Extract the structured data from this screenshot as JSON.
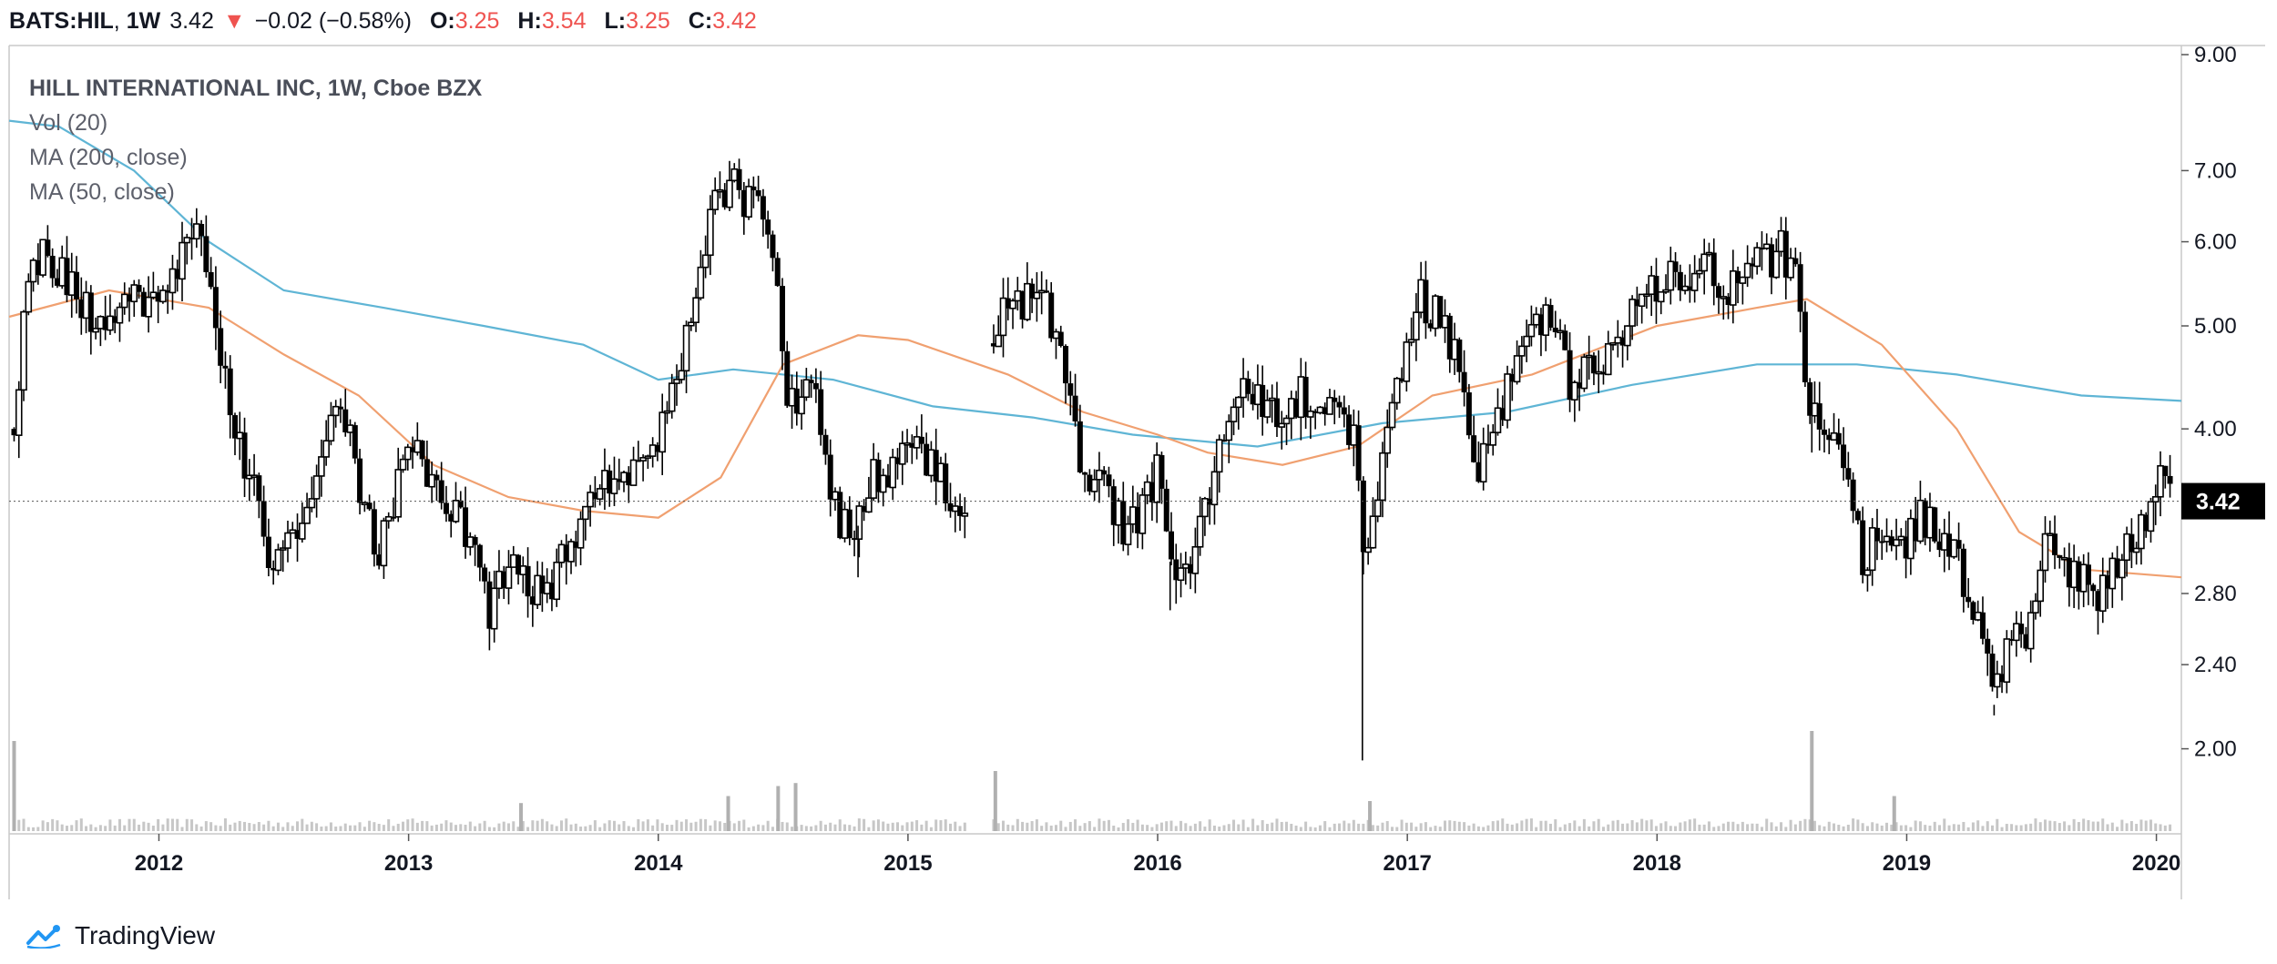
{
  "header": {
    "symbol": "BATS:HIL",
    "interval": "1W",
    "last": "3.42",
    "change": "−0.02 (−0.58%)",
    "o_label": "O:",
    "o_value": "3.25",
    "h_label": "H:",
    "h_value": "3.54",
    "l_label": "L:",
    "l_value": "3.25",
    "c_label": "C:",
    "c_value": "3.42"
  },
  "legend": {
    "title": "HILL INTERNATIONAL INC, 1W, Cboe BZX",
    "vol": "Vol (20)",
    "ma200": "MA (200, close)",
    "ma50": "MA (50, close)"
  },
  "footer": {
    "brand": "TradingView"
  },
  "colors": {
    "candle": "#000000",
    "ma200": "#5fb5d5",
    "ma50": "#f0a070",
    "volume": "#c7c7c7",
    "down_arrow": "#ef5350",
    "price_tag_bg": "#000000"
  },
  "chart_data": {
    "type": "candlestick",
    "title": "HILL INTERNATIONAL INC, 1W, Cboe BZX",
    "y_scale": "log",
    "y_ticks": [
      "9.00",
      "7.00",
      "6.00",
      "5.00",
      "4.00",
      "3.42",
      "2.80",
      "2.40",
      "2.00"
    ],
    "y_tick_values": [
      9.0,
      7.0,
      6.0,
      5.0,
      4.0,
      2.8,
      2.4,
      2.0
    ],
    "last_price": 3.42,
    "last_price_label": "3.42",
    "x_ticks": [
      "2012",
      "2013",
      "2014",
      "2015",
      "2016",
      "2017",
      "2018",
      "2019",
      "2020"
    ],
    "x_tick_years": [
      2012,
      2013,
      2014,
      2015,
      2016,
      2017,
      2018,
      2019,
      2020
    ],
    "x_range": [
      2011.4,
      2020.1
    ],
    "close_path": [
      [
        2011.42,
        4.0
      ],
      [
        2011.48,
        5.7
      ],
      [
        2011.55,
        5.9
      ],
      [
        2011.65,
        5.4
      ],
      [
        2011.75,
        5.0
      ],
      [
        2011.85,
        5.3
      ],
      [
        2011.95,
        5.2
      ],
      [
        2012.05,
        5.4
      ],
      [
        2012.15,
        6.4
      ],
      [
        2012.22,
        5.2
      ],
      [
        2012.3,
        4.0
      ],
      [
        2012.38,
        3.5
      ],
      [
        2012.45,
        3.0
      ],
      [
        2012.55,
        3.1
      ],
      [
        2012.62,
        3.5
      ],
      [
        2012.72,
        4.4
      ],
      [
        2012.8,
        3.6
      ],
      [
        2012.88,
        3.0
      ],
      [
        2012.95,
        3.5
      ],
      [
        2013.02,
        3.9
      ],
      [
        2013.1,
        3.5
      ],
      [
        2013.18,
        3.4
      ],
      [
        2013.25,
        3.1
      ],
      [
        2013.32,
        2.7
      ],
      [
        2013.4,
        3.0
      ],
      [
        2013.5,
        2.8
      ],
      [
        2013.58,
        2.9
      ],
      [
        2013.68,
        3.2
      ],
      [
        2013.78,
        3.6
      ],
      [
        2013.9,
        3.7
      ],
      [
        2014.0,
        3.9
      ],
      [
        2014.08,
        4.6
      ],
      [
        2014.15,
        5.4
      ],
      [
        2014.22,
        6.5
      ],
      [
        2014.28,
        6.8
      ],
      [
        2014.35,
        6.6
      ],
      [
        2014.45,
        6.1
      ],
      [
        2014.52,
        4.1
      ],
      [
        2014.6,
        4.6
      ],
      [
        2014.7,
        3.4
      ],
      [
        2014.78,
        3.1
      ],
      [
        2014.85,
        3.6
      ],
      [
        2014.95,
        3.7
      ],
      [
        2015.05,
        3.8
      ],
      [
        2015.15,
        3.5
      ],
      [
        2015.22,
        3.3
      ],
      [
        2015.32,
        3.7
      ],
      [
        2015.35,
        5.0
      ],
      [
        2015.45,
        5.3
      ],
      [
        2015.55,
        5.2
      ],
      [
        2015.62,
        4.7
      ],
      [
        2015.68,
        3.8
      ],
      [
        2015.78,
        3.5
      ],
      [
        2015.88,
        3.2
      ],
      [
        2015.95,
        3.4
      ],
      [
        2016.0,
        3.7
      ],
      [
        2016.05,
        3.0
      ],
      [
        2016.12,
        2.9
      ],
      [
        2016.2,
        3.4
      ],
      [
        2016.28,
        4.1
      ],
      [
        2016.38,
        4.4
      ],
      [
        2016.48,
        4.1
      ],
      [
        2016.58,
        4.3
      ],
      [
        2016.68,
        4.2
      ],
      [
        2016.78,
        4.0
      ],
      [
        2016.83,
        3.0
      ],
      [
        2016.9,
        3.7
      ],
      [
        2016.95,
        4.3
      ],
      [
        2017.05,
        5.3
      ],
      [
        2017.12,
        5.1
      ],
      [
        2017.2,
        4.7
      ],
      [
        2017.28,
        3.7
      ],
      [
        2017.38,
        4.2
      ],
      [
        2017.48,
        4.9
      ],
      [
        2017.58,
        5.2
      ],
      [
        2017.65,
        4.4
      ],
      [
        2017.72,
        4.5
      ],
      [
        2017.8,
        4.7
      ],
      [
        2017.9,
        5.1
      ],
      [
        2018.0,
        5.4
      ],
      [
        2018.1,
        5.6
      ],
      [
        2018.2,
        5.7
      ],
      [
        2018.3,
        5.4
      ],
      [
        2018.4,
        5.7
      ],
      [
        2018.5,
        5.9
      ],
      [
        2018.55,
        5.6
      ],
      [
        2018.6,
        4.3
      ],
      [
        2018.68,
        4.0
      ],
      [
        2018.75,
        3.8
      ],
      [
        2018.82,
        3.0
      ],
      [
        2018.9,
        3.2
      ],
      [
        2018.98,
        3.1
      ],
      [
        2019.05,
        3.3
      ],
      [
        2019.12,
        3.2
      ],
      [
        2019.2,
        3.0
      ],
      [
        2019.28,
        2.7
      ],
      [
        2019.35,
        2.2
      ],
      [
        2019.42,
        2.6
      ],
      [
        2019.5,
        2.6
      ],
      [
        2019.56,
        3.2
      ],
      [
        2019.62,
        2.9
      ],
      [
        2019.7,
        2.9
      ],
      [
        2019.78,
        2.8
      ],
      [
        2019.88,
        3.1
      ],
      [
        2019.95,
        3.2
      ],
      [
        2020.02,
        3.6
      ],
      [
        2020.07,
        3.42
      ]
    ],
    "gap": [
      2015.24,
      2015.34
    ],
    "ma200_path": [
      [
        2011.4,
        7.8
      ],
      [
        2011.6,
        7.7
      ],
      [
        2011.9,
        7.0
      ],
      [
        2012.2,
        6.0
      ],
      [
        2012.5,
        5.4
      ],
      [
        2012.9,
        5.2
      ],
      [
        2013.3,
        5.0
      ],
      [
        2013.7,
        4.8
      ],
      [
        2014.0,
        4.45
      ],
      [
        2014.3,
        4.55
      ],
      [
        2014.7,
        4.45
      ],
      [
        2015.1,
        4.2
      ],
      [
        2015.5,
        4.1
      ],
      [
        2015.9,
        3.95
      ],
      [
        2016.4,
        3.85
      ],
      [
        2016.9,
        4.05
      ],
      [
        2017.4,
        4.15
      ],
      [
        2017.9,
        4.4
      ],
      [
        2018.4,
        4.6
      ],
      [
        2018.8,
        4.6
      ],
      [
        2019.2,
        4.5
      ],
      [
        2019.7,
        4.3
      ],
      [
        2020.1,
        4.25
      ]
    ],
    "ma50_path": [
      [
        2011.4,
        5.1
      ],
      [
        2011.8,
        5.4
      ],
      [
        2012.2,
        5.2
      ],
      [
        2012.5,
        4.7
      ],
      [
        2012.8,
        4.3
      ],
      [
        2013.1,
        3.7
      ],
      [
        2013.4,
        3.45
      ],
      [
        2013.7,
        3.35
      ],
      [
        2014.0,
        3.3
      ],
      [
        2014.25,
        3.6
      ],
      [
        2014.5,
        4.6
      ],
      [
        2014.8,
        4.9
      ],
      [
        2015.0,
        4.85
      ],
      [
        2015.4,
        4.5
      ],
      [
        2015.7,
        4.15
      ],
      [
        2016.0,
        3.95
      ],
      [
        2016.2,
        3.8
      ],
      [
        2016.5,
        3.7
      ],
      [
        2016.8,
        3.85
      ],
      [
        2017.1,
        4.3
      ],
      [
        2017.5,
        4.5
      ],
      [
        2018.0,
        5.0
      ],
      [
        2018.4,
        5.2
      ],
      [
        2018.6,
        5.3
      ],
      [
        2018.9,
        4.8
      ],
      [
        2019.2,
        4.0
      ],
      [
        2019.45,
        3.2
      ],
      [
        2019.7,
        2.95
      ],
      [
        2020.1,
        2.9
      ]
    ],
    "volume_spikes": [
      [
        2011.42,
        0.9
      ],
      [
        2013.45,
        0.28
      ],
      [
        2014.28,
        0.35
      ],
      [
        2014.48,
        0.45
      ],
      [
        2014.55,
        0.48
      ],
      [
        2015.35,
        0.6
      ],
      [
        2016.85,
        0.3
      ],
      [
        2018.62,
        1.0
      ],
      [
        2018.95,
        0.35
      ]
    ],
    "intraday_lows": [
      [
        2016.82,
        1.95
      ],
      [
        2018.62,
        3.8
      ],
      [
        2019.35,
        2.15
      ],
      [
        2016.05,
        2.7
      ],
      [
        2014.8,
        2.9
      ]
    ],
    "legend": [
      "Vol (20)",
      "MA (200, close)",
      "MA (50, close)"
    ],
    "legend_position": "top-left",
    "grid": false
  }
}
